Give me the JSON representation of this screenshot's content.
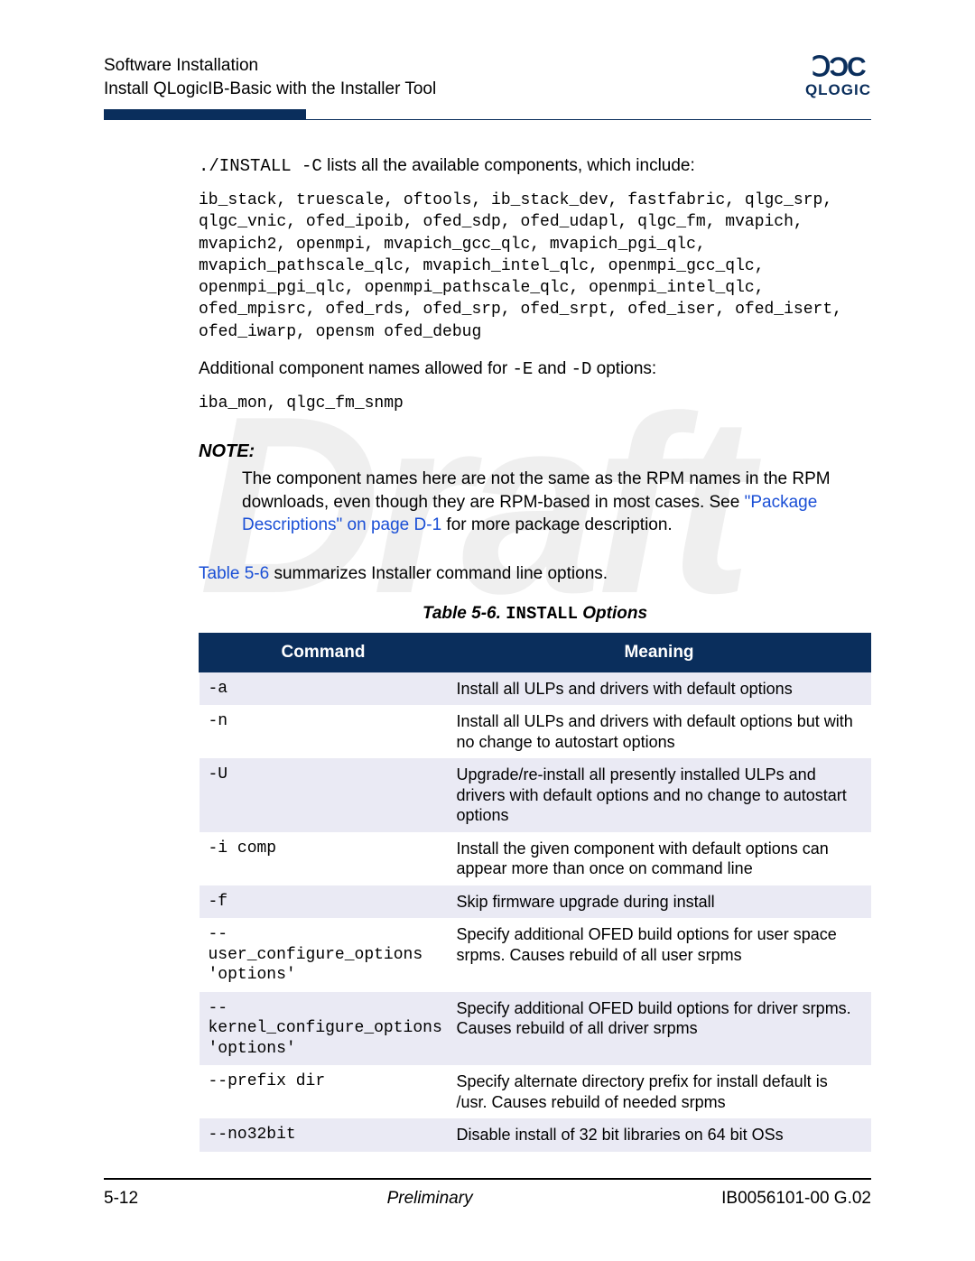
{
  "header": {
    "line1": "Software Installation",
    "line2": "Install QLogicIB-Basic with the Installer Tool",
    "logo_symbol": "ꓛƆC",
    "logo_text": "QLOGIC"
  },
  "watermark": "Draft",
  "intro": {
    "cmd": "./INSTALL -C",
    "rest": " lists all the available components, which include:"
  },
  "components_block": "ib_stack, truescale, oftools, ib_stack_dev, fastfabric, qlgc_srp,\nqlgc_vnic, ofed_ipoib, ofed_sdp, ofed_udapl, qlgc_fm, mvapich,\nmvapich2, openmpi, mvapich_gcc_qlc, mvapich_pgi_qlc,\nmvapich_pathscale_qlc, mvapich_intel_qlc, openmpi_gcc_qlc,\nopenmpi_pgi_qlc, openmpi_pathscale_qlc, openmpi_intel_qlc,\nofed_mpisrc, ofed_rds, ofed_srp, ofed_srpt, ofed_iser, ofed_isert,\nofed_iwarp, opensm ofed_debug",
  "additional": {
    "prefix": "Additional component names allowed for ",
    "opt1": "-E",
    "mid": " and ",
    "opt2": "-D",
    "suffix": " options:"
  },
  "additional_block": "iba_mon, qlgc_fm_snmp",
  "note": {
    "title": "NOTE:",
    "body_pre": "The component names here are not the same as the RPM names in the RPM downloads, even though they are RPM-based in most cases. See ",
    "link": "\"Package Descriptions\" on page D-1",
    "body_post": " for more package description."
  },
  "table_ref": {
    "link": "Table 5-6",
    "rest": " summarizes Installer command line options."
  },
  "table_caption": {
    "pre": "Table 5-6. ",
    "mono": "INSTALL",
    "post": " Options"
  },
  "table": {
    "headers": {
      "col1": "Command",
      "col2": "Meaning"
    },
    "rows": [
      {
        "cmd": "-a",
        "meaning": "Install all ULPs and drivers with default options"
      },
      {
        "cmd": "-n",
        "meaning": "Install all ULPs and drivers with default options but with no change to autostart options"
      },
      {
        "cmd": "-U",
        "meaning": "Upgrade/re-install all presently installed ULPs and drivers with default options and no change to autostart options"
      },
      {
        "cmd": "-i comp",
        "meaning": "Install the given component with default options can appear more than once on command line"
      },
      {
        "cmd": "-f",
        "meaning": "Skip firmware upgrade during install"
      },
      {
        "cmd": "--user_configure_options\n'options'",
        "meaning": "Specify additional OFED build options for user space srpms. Causes rebuild of all user srpms"
      },
      {
        "cmd": "--kernel_configure_options\n'options'",
        "meaning": "Specify additional OFED build options for driver srpms. Causes rebuild of all driver srpms"
      },
      {
        "cmd": "--prefix dir",
        "meaning": "Specify alternate directory prefix for install default is /usr. Causes rebuild of needed srpms"
      },
      {
        "cmd": "--no32bit",
        "meaning": "Disable install of 32 bit libraries on 64 bit OSs"
      }
    ]
  },
  "footer": {
    "left": "5-12",
    "center": "Preliminary",
    "right": "IB0056101-00 G.02"
  },
  "colors": {
    "brand": "#0a2e5c",
    "link": "#1a4fd6",
    "row_odd": "#eaeaf4",
    "row_even": "#ffffff"
  }
}
